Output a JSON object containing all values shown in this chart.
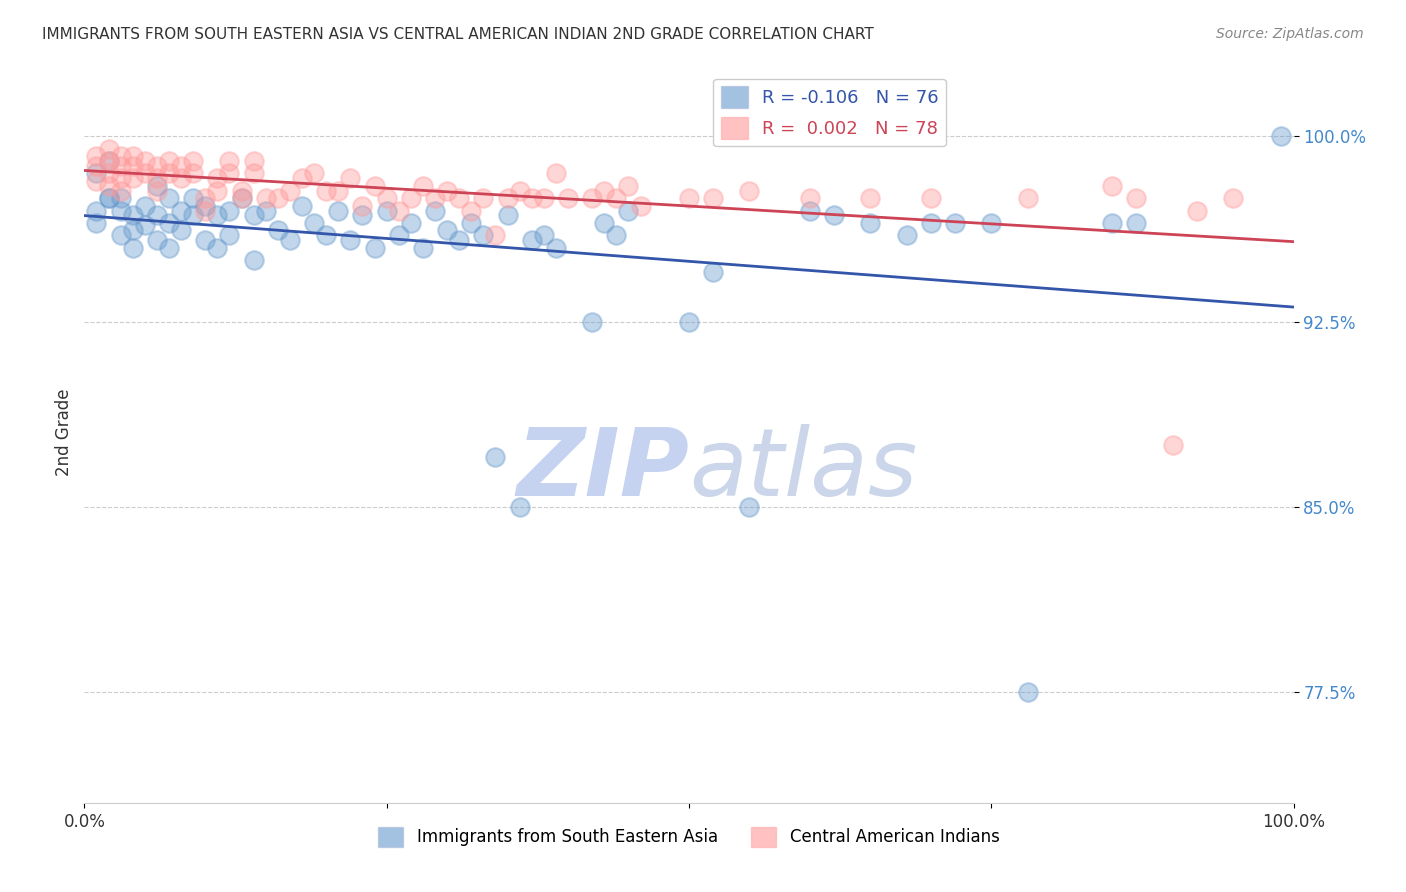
{
  "title": "IMMIGRANTS FROM SOUTH EASTERN ASIA VS CENTRAL AMERICAN INDIAN 2ND GRADE CORRELATION CHART",
  "source": "Source: ZipAtlas.com",
  "ylabel": "2nd Grade",
  "ytick_labels": [
    "77.5%",
    "85.0%",
    "92.5%",
    "100.0%"
  ],
  "ytick_values": [
    0.775,
    0.85,
    0.925,
    1.0
  ],
  "xlim": [
    0.0,
    1.0
  ],
  "ylim": [
    0.73,
    1.03
  ],
  "legend_blue_label": "R = -0.106   N = 76",
  "legend_pink_label": "R =  0.002   N = 78",
  "legend_footer_blue": "Immigrants from South Eastern Asia",
  "legend_footer_pink": "Central American Indians",
  "blue_color": "#6699CC",
  "pink_color": "#FF9999",
  "blue_line_color": "#3355AA",
  "pink_line_color": "#CC4455",
  "watermark_zip": "ZIP",
  "watermark_atlas": "atlas",
  "blue_x": [
    0.02,
    0.01,
    0.01,
    0.01,
    0.02,
    0.02,
    0.03,
    0.03,
    0.03,
    0.04,
    0.04,
    0.04,
    0.05,
    0.05,
    0.06,
    0.06,
    0.06,
    0.07,
    0.07,
    0.07,
    0.08,
    0.08,
    0.09,
    0.09,
    0.1,
    0.1,
    0.11,
    0.11,
    0.12,
    0.12,
    0.13,
    0.14,
    0.14,
    0.15,
    0.16,
    0.17,
    0.18,
    0.19,
    0.2,
    0.21,
    0.22,
    0.23,
    0.24,
    0.25,
    0.26,
    0.27,
    0.28,
    0.29,
    0.3,
    0.31,
    0.32,
    0.33,
    0.34,
    0.35,
    0.36,
    0.37,
    0.38,
    0.39,
    0.42,
    0.43,
    0.44,
    0.45,
    0.5,
    0.52,
    0.55,
    0.6,
    0.62,
    0.65,
    0.68,
    0.7,
    0.72,
    0.75,
    0.78,
    0.85,
    0.87,
    0.99
  ],
  "blue_y": [
    0.975,
    0.985,
    0.97,
    0.965,
    0.99,
    0.975,
    0.96,
    0.97,
    0.975,
    0.968,
    0.962,
    0.955,
    0.972,
    0.964,
    0.98,
    0.968,
    0.958,
    0.975,
    0.965,
    0.955,
    0.97,
    0.962,
    0.975,
    0.968,
    0.972,
    0.958,
    0.968,
    0.955,
    0.97,
    0.96,
    0.975,
    0.968,
    0.95,
    0.97,
    0.962,
    0.958,
    0.972,
    0.965,
    0.96,
    0.97,
    0.958,
    0.968,
    0.955,
    0.97,
    0.96,
    0.965,
    0.955,
    0.97,
    0.962,
    0.958,
    0.965,
    0.96,
    0.87,
    0.968,
    0.85,
    0.958,
    0.96,
    0.955,
    0.925,
    0.965,
    0.96,
    0.97,
    0.925,
    0.945,
    0.85,
    0.97,
    0.968,
    0.965,
    0.96,
    0.965,
    0.965,
    0.965,
    0.775,
    0.965,
    0.965,
    1.0
  ],
  "pink_x": [
    0.01,
    0.01,
    0.01,
    0.02,
    0.02,
    0.02,
    0.02,
    0.03,
    0.03,
    0.03,
    0.03,
    0.04,
    0.04,
    0.04,
    0.05,
    0.05,
    0.06,
    0.06,
    0.06,
    0.07,
    0.07,
    0.08,
    0.08,
    0.09,
    0.09,
    0.1,
    0.1,
    0.11,
    0.11,
    0.12,
    0.12,
    0.13,
    0.13,
    0.14,
    0.14,
    0.15,
    0.16,
    0.17,
    0.18,
    0.19,
    0.2,
    0.21,
    0.22,
    0.23,
    0.24,
    0.25,
    0.26,
    0.27,
    0.28,
    0.29,
    0.3,
    0.31,
    0.32,
    0.33,
    0.34,
    0.35,
    0.36,
    0.37,
    0.38,
    0.39,
    0.4,
    0.42,
    0.43,
    0.44,
    0.45,
    0.46,
    0.5,
    0.52,
    0.55,
    0.6,
    0.65,
    0.7,
    0.78,
    0.85,
    0.87,
    0.9,
    0.92,
    0.95
  ],
  "pink_y": [
    0.992,
    0.988,
    0.982,
    0.995,
    0.99,
    0.985,
    0.98,
    0.992,
    0.988,
    0.983,
    0.978,
    0.992,
    0.988,
    0.983,
    0.99,
    0.985,
    0.988,
    0.983,
    0.978,
    0.99,
    0.985,
    0.988,
    0.983,
    0.99,
    0.985,
    0.975,
    0.97,
    0.978,
    0.983,
    0.99,
    0.985,
    0.978,
    0.975,
    0.99,
    0.985,
    0.975,
    0.975,
    0.978,
    0.983,
    0.985,
    0.978,
    0.978,
    0.983,
    0.972,
    0.98,
    0.975,
    0.97,
    0.975,
    0.98,
    0.975,
    0.978,
    0.975,
    0.97,
    0.975,
    0.96,
    0.975,
    0.978,
    0.975,
    0.975,
    0.985,
    0.975,
    0.975,
    0.978,
    0.975,
    0.98,
    0.972,
    0.975,
    0.975,
    0.978,
    0.975,
    0.975,
    0.975,
    0.975,
    0.98,
    0.975,
    0.875,
    0.97,
    0.975
  ]
}
